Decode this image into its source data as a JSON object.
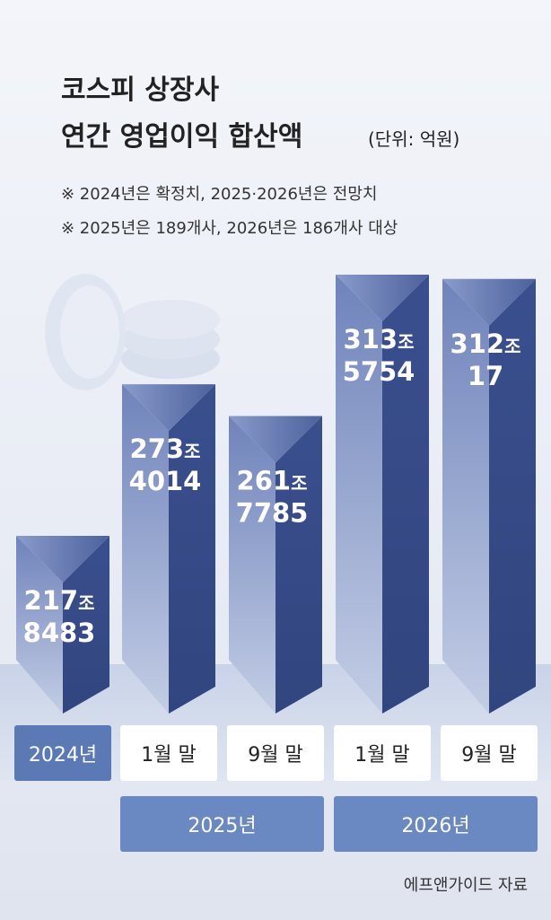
{
  "chart_data": {
    "type": "bar",
    "title": "코스피 상장사",
    "subtitle": "연간 영업이익 합산액",
    "unit": "(단위: 억원)",
    "notes": [
      "※ 2024년은 확정치, 2025·2026년은 전망치",
      "※ 2025년은 189개사, 2026년은 186개사 대상"
    ],
    "categories": [
      "2024년",
      "1월 말",
      "9월 말",
      "1월 말",
      "9월 말"
    ],
    "groups": [
      "2025년",
      "2026년"
    ],
    "values": [
      2178483,
      2734014,
      2617785,
      3135754,
      3120017
    ],
    "value_labels": [
      "217조 8483",
      "273조 4014",
      "261조 7785",
      "313조 5754",
      "312조 17"
    ],
    "source": "에프앤가이드 자료"
  }
}
